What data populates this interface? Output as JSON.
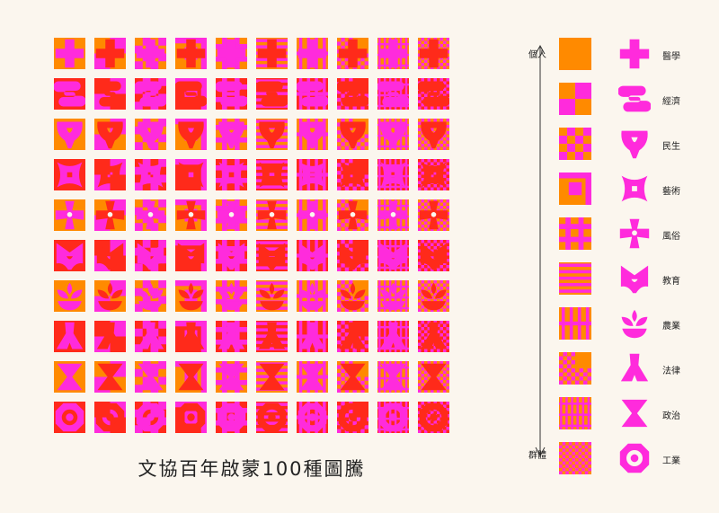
{
  "caption": "文協百年啟蒙100種圖騰",
  "axis": {
    "top_label": "個人",
    "bottom_label": "群體"
  },
  "themes": [
    "醫學",
    "經濟",
    "民生",
    "藝術",
    "風俗",
    "教育",
    "農業",
    "法律",
    "政治",
    "工業"
  ],
  "colors": {
    "orange": "#ff8a00",
    "red": "#ff2a1a",
    "magenta": "#ff2bdc",
    "background": "#fbf6ee"
  },
  "icons": [
    "cross-icon",
    "wave-icon",
    "bulb-icon",
    "knot-icon",
    "flower-icon",
    "book-icon",
    "sprout-icon",
    "scale-icon",
    "hourglass-icon",
    "gear-icon"
  ],
  "pattern_styles": [
    "solid",
    "quadrants",
    "checker-large",
    "corner-band",
    "hash",
    "stripes",
    "bars",
    "mixed-checker",
    "grid-lines",
    "fine-checker"
  ]
}
